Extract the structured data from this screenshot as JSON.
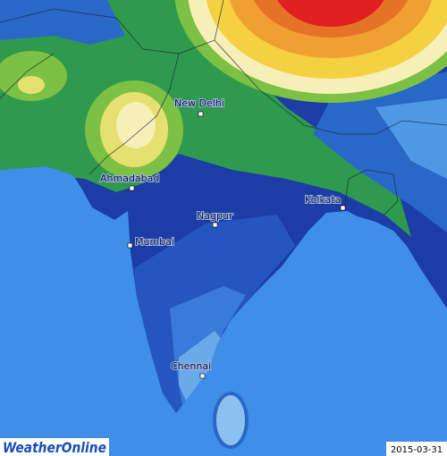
{
  "map": {
    "cities": [
      {
        "label": "New Delhi"
      },
      {
        "label": "Ahmadabad"
      },
      {
        "label": "Kolkata"
      },
      {
        "label": "Nagpur"
      },
      {
        "label": "Mumbai"
      },
      {
        "label": "Chennai"
      }
    ],
    "logo": "WeatherOnline",
    "date": "2015-03-31"
  }
}
